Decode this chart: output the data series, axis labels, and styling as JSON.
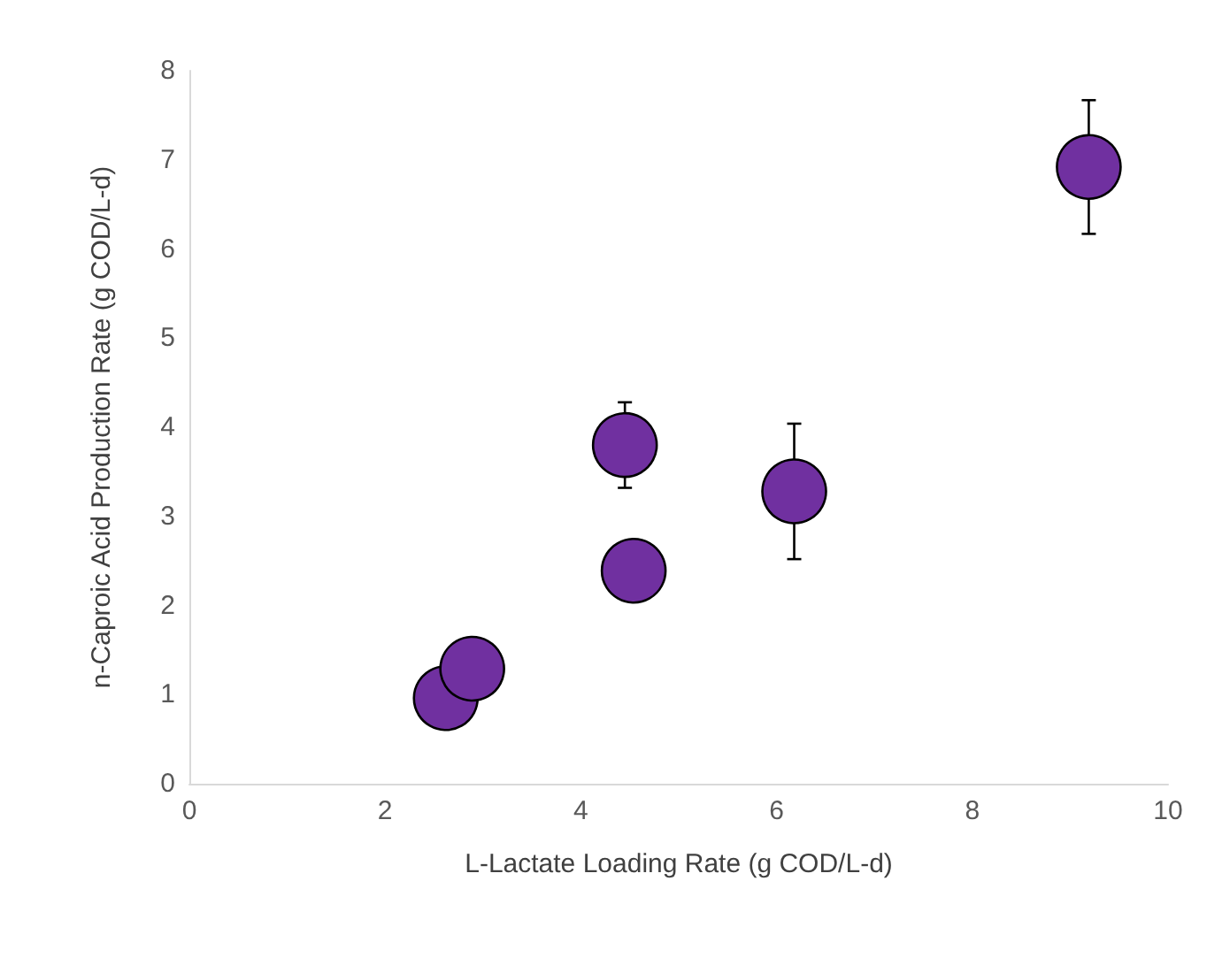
{
  "chart_data": {
    "type": "scatter",
    "xlabel": "L-Lactate Loading Rate (g COD/L-d)",
    "ylabel": "n-Caproic Acid Production Rate (g COD/L-d)",
    "x": [
      2.62,
      2.89,
      4.45,
      4.54,
      6.18,
      9.19
    ],
    "series": [
      {
        "color": "#7030a0",
        "values": [
          0.96,
          1.29,
          3.8,
          2.39,
          3.28,
          6.92
        ],
        "errors": [
          null,
          null,
          0.48,
          null,
          0.76,
          0.75
        ]
      }
    ],
    "xlim": [
      0,
      10
    ],
    "xticks": [
      0,
      2,
      4,
      6,
      8,
      10
    ],
    "ylim": [
      0,
      8
    ],
    "yticks": [
      0,
      1,
      2,
      3,
      4,
      5,
      6,
      7,
      8
    ],
    "grid": false,
    "marker": "circle"
  }
}
